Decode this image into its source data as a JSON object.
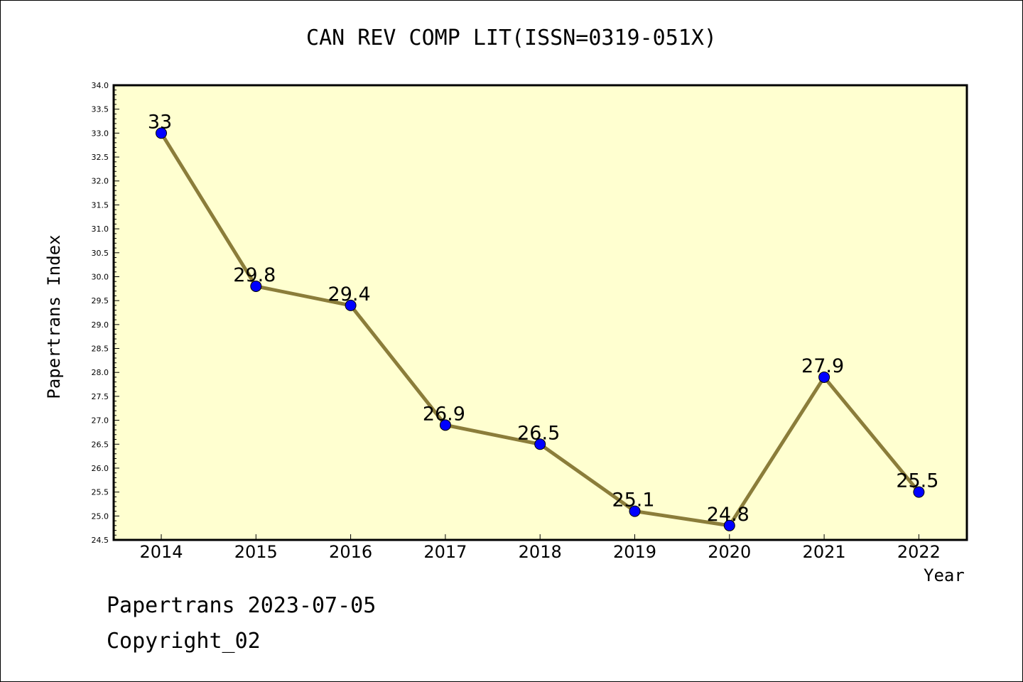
{
  "title": "CAN REV COMP LIT(ISSN=0319-051X)",
  "footer": {
    "date_line": "Papertrans 2023-07-05",
    "copyright_line": "Copyright_02"
  },
  "colors": {
    "plot_background": "#ffffd0",
    "line": "#8b7d3a",
    "marker": "#0000ff",
    "axis": "#000000"
  },
  "chart_data": {
    "type": "line",
    "title": "CAN REV COMP LIT(ISSN=0319-051X)",
    "xlabel": "Year",
    "ylabel": "Papertrans Index",
    "categories": [
      "2014",
      "2015",
      "2016",
      "2017",
      "2018",
      "2019",
      "2020",
      "2021",
      "2022"
    ],
    "series": [
      {
        "values": [
          33,
          29.8,
          29.4,
          26.9,
          26.5,
          25.1,
          24.8,
          27.9,
          25.5
        ],
        "labels": [
          "33",
          "29.8",
          "29.4",
          "26.9",
          "26.5",
          "25.1",
          "24.8",
          "27.9",
          "25.5"
        ]
      }
    ],
    "ylim": [
      24.5,
      34.0
    ],
    "yticks": [
      "24.5",
      "25.0",
      "25.5",
      "26.0",
      "26.5",
      "27.0",
      "27.5",
      "28.0",
      "28.5",
      "29.0",
      "29.5",
      "30.0",
      "30.5",
      "31.0",
      "31.5",
      "32.0",
      "32.5",
      "33.0",
      "33.5",
      "34.0"
    ],
    "grid": false,
    "legend": "none"
  }
}
